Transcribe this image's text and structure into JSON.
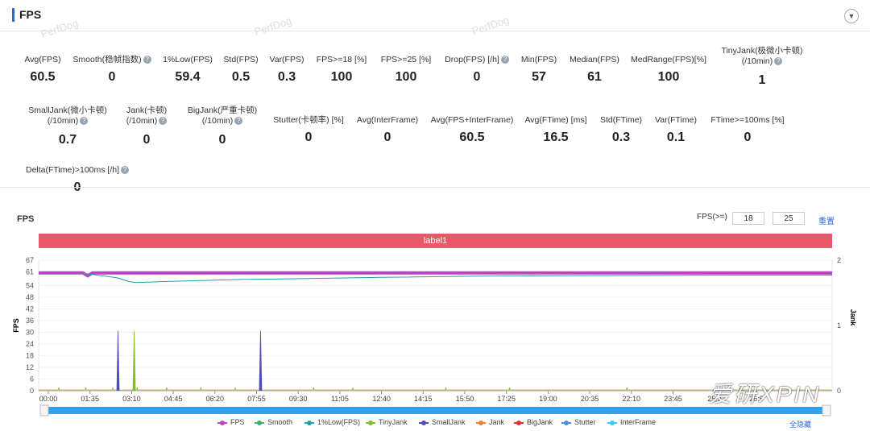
{
  "header": {
    "title": "FPS"
  },
  "watermarks": [
    "PerfDog",
    "PerfDog",
    "PerfDog"
  ],
  "metrics": [
    {
      "label": "Avg(FPS)",
      "value": "60.5",
      "help": false
    },
    {
      "label": "Smooth(稳帧指数)",
      "value": "0",
      "help": true
    },
    {
      "label": "1%Low(FPS)",
      "value": "59.4",
      "help": false
    },
    {
      "label": "Std(FPS)",
      "value": "0.5",
      "help": false
    },
    {
      "label": "Var(FPS)",
      "value": "0.3",
      "help": false
    },
    {
      "label": "FPS>=18 [%]",
      "value": "100",
      "help": false
    },
    {
      "label": "FPS>=25 [%]",
      "value": "100",
      "help": false
    },
    {
      "label": "Drop(FPS) [/h]",
      "value": "0",
      "help": true
    },
    {
      "label": "Min(FPS)",
      "value": "57",
      "help": false
    },
    {
      "label": "Median(FPS)",
      "value": "61",
      "help": false
    },
    {
      "label": "MedRange(FPS)[%]",
      "value": "100",
      "help": false
    },
    {
      "label": "TinyJank(极微小卡顿)",
      "label2": "(/10min)",
      "value": "1",
      "help": true
    },
    {
      "label": "SmallJank(微小卡顿)",
      "label2": "(/10min)",
      "value": "0.7",
      "help": true
    },
    {
      "label": "Jank(卡顿)",
      "label2": "(/10min)",
      "value": "0",
      "help": true
    },
    {
      "label": "BigJank(严重卡顿)",
      "label2": "(/10min)",
      "value": "0",
      "help": true
    },
    {
      "label": "Stutter(卡顿率) [%]",
      "value": "0",
      "help": false
    },
    {
      "label": "Avg(InterFrame)",
      "value": "0",
      "help": false
    },
    {
      "label": "Avg(FPS+InterFrame)",
      "value": "60.5",
      "help": false
    },
    {
      "label": "Avg(FTime) [ms]",
      "value": "16.5",
      "help": false
    },
    {
      "label": "Std(FTime)",
      "value": "0.3",
      "help": false
    },
    {
      "label": "Var(FTime)",
      "value": "0.1",
      "help": false
    },
    {
      "label": "FTime>=100ms [%]",
      "value": "0",
      "help": false
    },
    {
      "label": "Delta(FTime)>100ms [/h]",
      "value": "0",
      "help": true
    }
  ],
  "section": {
    "title": "FPS",
    "threshold_label": "FPS(>=)",
    "threshold1": "18",
    "threshold2": "25",
    "reset_label": "重置",
    "band_label": "label1",
    "hide_all_label": "全隐藏",
    "brand_text": "爱研XPIN"
  },
  "colors": {
    "FPS": "#c040c0",
    "Smooth": "#3cb070",
    "1%Low(FPS)": "#20a0a0",
    "TinyJank": "#80c030",
    "SmallJank": "#5050b0",
    "Jank": "#f08030",
    "BigJank": "#e03030",
    "Stutter": "#4a90e0",
    "InterFrame": "#40c8e8"
  },
  "chart_data": {
    "type": "line",
    "ylabel": "FPS",
    "y2label": "Jank",
    "ylim": [
      0,
      67
    ],
    "yticks": [
      0,
      6,
      12,
      18,
      24,
      30,
      36,
      42,
      48,
      54,
      61,
      67
    ],
    "y2lim": [
      0,
      2
    ],
    "y2ticks": [
      0,
      1,
      2
    ],
    "xticks": [
      "00:00",
      "01:35",
      "03:10",
      "04:45",
      "06:20",
      "07:55",
      "09:30",
      "11:05",
      "12:40",
      "14:15",
      "15:50",
      "17:25",
      "19:00",
      "20:35",
      "22:10",
      "23:45",
      "25:2",
      "26:5"
    ],
    "series": [
      {
        "name": "FPS",
        "points": [
          [
            0,
            60.5
          ],
          [
            50,
            60.5
          ],
          [
            90,
            60.5
          ],
          [
            100,
            59
          ],
          [
            110,
            60.5
          ],
          [
            200,
            60.5
          ],
          [
            260,
            60.5
          ],
          [
            400,
            60.5
          ],
          [
            480,
            60.5
          ],
          [
            500,
            60.5
          ],
          [
            600,
            60.5
          ],
          [
            1000,
            60.5
          ],
          [
            1060,
            60.5
          ],
          [
            1200,
            60.5
          ],
          [
            1600,
            60.5
          ],
          [
            1620,
            60.5
          ]
        ]
      },
      {
        "name": "1%Low(FPS)",
        "points": [
          [
            0,
            60
          ],
          [
            100,
            60
          ],
          [
            160,
            58
          ],
          [
            185,
            56
          ],
          [
            200,
            55.5
          ],
          [
            250,
            56
          ],
          [
            320,
            56.5
          ],
          [
            420,
            57.2
          ],
          [
            470,
            57.3
          ],
          [
            550,
            57.6
          ],
          [
            700,
            58.2
          ],
          [
            900,
            58.8
          ],
          [
            1100,
            59.1
          ],
          [
            1400,
            59.3
          ],
          [
            1620,
            59.4
          ]
        ]
      },
      {
        "name": "SmallJank",
        "spikes": [
          [
            162,
            1
          ],
          [
            453,
            1
          ]
        ]
      },
      {
        "name": "TinyJank",
        "spikes": [
          [
            195,
            1
          ]
        ]
      }
    ]
  },
  "legend": [
    "FPS",
    "Smooth",
    "1%Low(FPS)",
    "TinyJank",
    "SmallJank",
    "Jank",
    "BigJank",
    "Stutter",
    "InterFrame"
  ]
}
